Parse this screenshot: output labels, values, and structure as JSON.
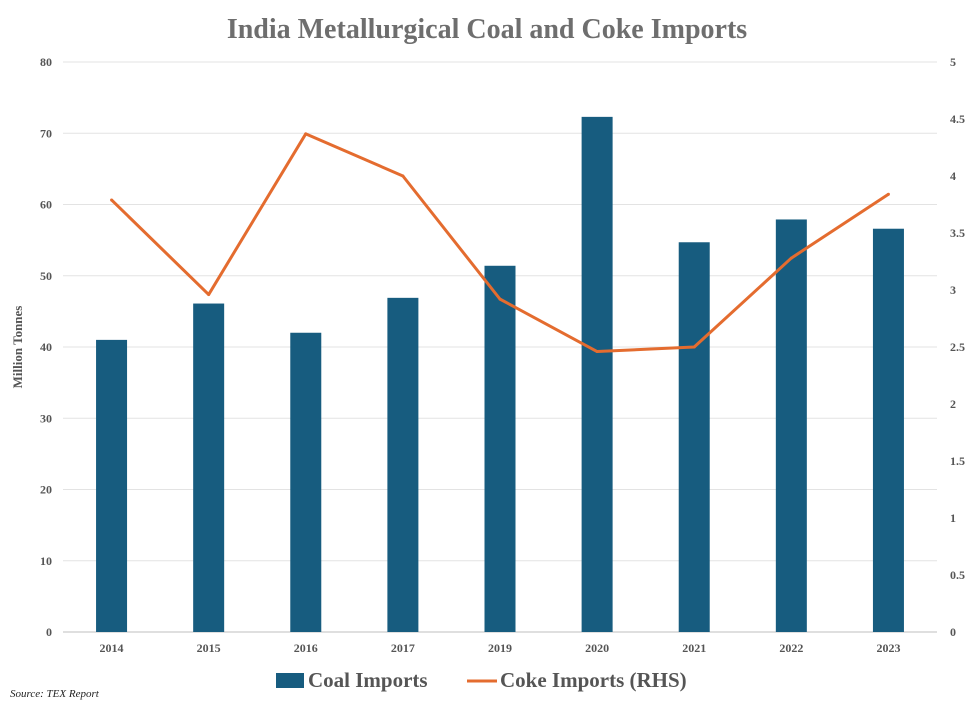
{
  "chart_data": {
    "type": "bar",
    "title": "India Metallurgical Coal and Coke Imports",
    "ylabel": "Million Tonnes",
    "categories": [
      "2014",
      "2015",
      "2016",
      "2017",
      "2019",
      "2020",
      "2021",
      "2022",
      "2023"
    ],
    "series": [
      {
        "name": "Coal Imports",
        "type": "bar",
        "axis": "left",
        "color": "#175c7f",
        "values": [
          41.0,
          46.1,
          42.0,
          46.9,
          51.4,
          72.3,
          54.7,
          57.9,
          56.6
        ]
      },
      {
        "name": "Coke Imports (RHS)",
        "type": "line",
        "axis": "right",
        "color": "#e46c2f",
        "values": [
          3.79,
          2.96,
          4.37,
          4.0,
          2.92,
          2.46,
          2.5,
          3.28,
          3.84
        ]
      }
    ],
    "ylim": [
      0,
      80
    ],
    "y2lim": [
      0,
      5
    ],
    "yticks": [
      "0",
      "10",
      "20",
      "30",
      "40",
      "50",
      "60",
      "70",
      "80"
    ],
    "y2ticks": [
      "0",
      "0.5",
      "1",
      "1.5",
      "2",
      "2.5",
      "3",
      "3.5",
      "4",
      "4.5",
      "5"
    ],
    "grid": true,
    "legend_position": "bottom",
    "source": "Source: TEX Report"
  }
}
